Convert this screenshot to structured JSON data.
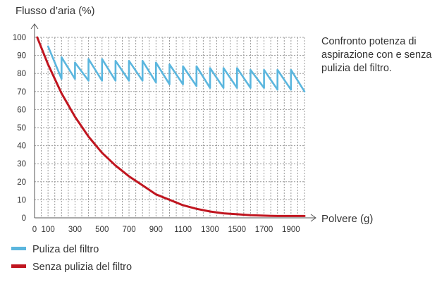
{
  "chart_data": {
    "type": "line",
    "ylabel": "Flusso d’aria (%)",
    "xlabel": "Polvere (g)",
    "annotation": "Confronto potenza di aspirazione con e senza pulizia del filtro.",
    "x_ticks": [
      0,
      100,
      300,
      500,
      700,
      900,
      1100,
      1300,
      1500,
      1700,
      1900
    ],
    "y_ticks": [
      0,
      10,
      20,
      30,
      40,
      50,
      60,
      70,
      80,
      90,
      100
    ],
    "xlim": [
      0,
      2000
    ],
    "ylim": [
      0,
      100
    ],
    "grid": true,
    "legend_position": "bottom-left",
    "series": [
      {
        "name": "Puliza del filtro",
        "color": "#5bb6de",
        "x": [
          100,
          200,
          200,
          300,
          300,
          400,
          400,
          500,
          500,
          600,
          600,
          700,
          700,
          800,
          800,
          900,
          900,
          1000,
          1000,
          1100,
          1100,
          1200,
          1200,
          1300,
          1300,
          1400,
          1400,
          1500,
          1500,
          1600,
          1600,
          1700,
          1700,
          1800,
          1800,
          1900,
          1900,
          2000
        ],
        "y": [
          95,
          77,
          89,
          77,
          86,
          76,
          88,
          76,
          88,
          76,
          87,
          76,
          87,
          76,
          87,
          75,
          86,
          74,
          85,
          74,
          84,
          73,
          84,
          72,
          83,
          72,
          83,
          72,
          83,
          72,
          82,
          72,
          82,
          71,
          82,
          71,
          82,
          70
        ]
      },
      {
        "name": "Senza pulizia del filtro",
        "color": "#c0151f",
        "x": [
          20,
          100,
          200,
          300,
          400,
          500,
          600,
          700,
          800,
          900,
          1000,
          1100,
          1200,
          1300,
          1400,
          1500,
          1600,
          1700,
          1800,
          1900,
          2000
        ],
        "y": [
          100,
          85,
          69,
          56,
          45,
          36,
          29,
          23,
          18,
          13,
          10,
          7,
          5,
          3.5,
          2.5,
          2,
          1.5,
          1.2,
          1,
          1,
          1
        ]
      }
    ]
  }
}
